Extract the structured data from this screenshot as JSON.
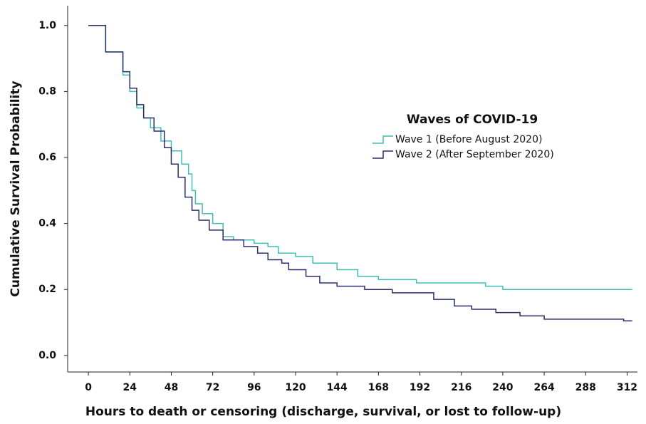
{
  "chart_data": {
    "type": "step",
    "xlabel": "Hours to death or censoring (discharge, survival, or lost to follow-up)",
    "ylabel": "Cumulative Survival Probability",
    "legend_title": "Waves of COVID-19",
    "legend": "right",
    "xlim": [
      -12,
      318
    ],
    "ylim": [
      -0.05,
      1.06
    ],
    "xticks": [
      0,
      24,
      48,
      72,
      96,
      120,
      144,
      168,
      192,
      216,
      240,
      264,
      288,
      312
    ],
    "yticks": [
      {
        "value": 0,
        "label": "0.0"
      },
      {
        "value": 0.2,
        "label": "0.2"
      },
      {
        "value": 0.4,
        "label": "0.4"
      },
      {
        "value": 0.6,
        "label": "0.6"
      },
      {
        "value": 0.8,
        "label": "0.8"
      },
      {
        "value": 1,
        "label": "1.0"
      }
    ],
    "series": [
      {
        "name": "Wave 1 (Before August 2020)",
        "color": "#3cbfb4",
        "x": [
          0,
          10,
          20,
          24,
          28,
          32,
          36,
          42,
          48,
          54,
          58,
          60,
          62,
          66,
          72,
          78,
          84,
          96,
          104,
          110,
          120,
          130,
          144,
          156,
          168,
          190,
          230,
          240,
          315
        ],
        "values": [
          1.0,
          0.92,
          0.85,
          0.8,
          0.75,
          0.72,
          0.69,
          0.65,
          0.62,
          0.58,
          0.55,
          0.5,
          0.46,
          0.43,
          0.4,
          0.36,
          0.35,
          0.34,
          0.33,
          0.31,
          0.3,
          0.28,
          0.26,
          0.24,
          0.23,
          0.22,
          0.21,
          0.2,
          0.2
        ]
      },
      {
        "name": "Wave 2 (After September 2020)",
        "color": "#2a2f6b",
        "x": [
          0,
          10,
          20,
          24,
          28,
          32,
          38,
          44,
          48,
          52,
          56,
          60,
          64,
          70,
          78,
          90,
          98,
          104,
          112,
          116,
          126,
          134,
          144,
          160,
          176,
          200,
          212,
          222,
          236,
          250,
          264,
          310,
          315
        ],
        "values": [
          1.0,
          0.92,
          0.86,
          0.81,
          0.76,
          0.72,
          0.68,
          0.63,
          0.58,
          0.54,
          0.48,
          0.44,
          0.41,
          0.38,
          0.35,
          0.33,
          0.31,
          0.29,
          0.28,
          0.26,
          0.24,
          0.22,
          0.21,
          0.2,
          0.19,
          0.17,
          0.15,
          0.14,
          0.13,
          0.12,
          0.11,
          0.105,
          0.105
        ]
      }
    ]
  }
}
